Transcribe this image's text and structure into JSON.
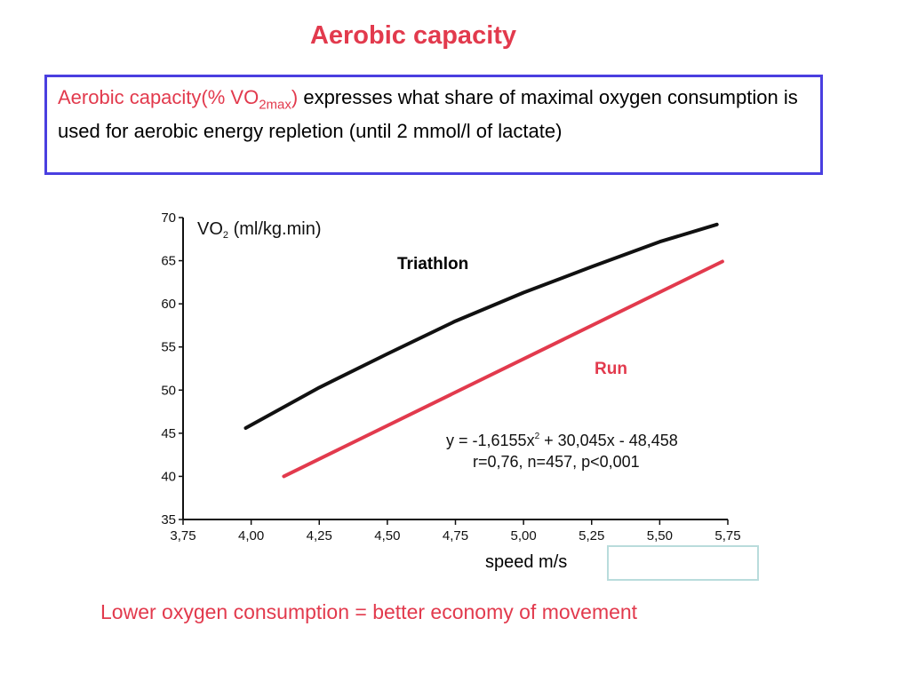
{
  "slide": {
    "title": "Aerobic capacity",
    "definition": {
      "term": "Aerobic capacity(% VO",
      "term_subscript": "2max",
      "term_close": ")",
      "text": " expresses what share of maximal oxygen consumption is used for aerobic energy repletion (until 2 mmol/l of lactate)"
    },
    "speed_label": "speed m/s",
    "footer": "Lower oxygen consumption = better economy of movement"
  },
  "colors": {
    "accent_red": "#e23a4d",
    "box_blue": "#4a3fe0",
    "black": "#111111"
  },
  "chart_data": {
    "type": "line",
    "ylabel": "VO",
    "ylabel_sub": "2",
    "ylabel_rest": " (ml/kg.min)",
    "xlabel": "speed m/s",
    "xlim": [
      3.75,
      5.75
    ],
    "ylim": [
      35,
      70
    ],
    "xticks": [
      "3,75",
      "4,00",
      "4,25",
      "4,50",
      "4,75",
      "5,00",
      "5,25",
      "5,50",
      "5,75"
    ],
    "yticks": [
      "35",
      "40",
      "45",
      "50",
      "55",
      "60",
      "65",
      "70"
    ],
    "series": [
      {
        "name": "Triathlon",
        "x": [
          3.98,
          4.25,
          4.5,
          4.75,
          5.0,
          5.25,
          5.5,
          5.71
        ],
        "y": [
          45.6,
          50.3,
          54.2,
          58.0,
          61.3,
          64.3,
          67.2,
          69.2
        ]
      },
      {
        "name": "Run",
        "x": [
          4.12,
          5.73
        ],
        "y": [
          40.0,
          64.9
        ]
      }
    ],
    "equation": "y = -1,6155x",
    "equation_sup": "2",
    "equation_rest": " + 30,045x - 48,458",
    "stats": "r=0,76, n=457, p<0,001"
  }
}
